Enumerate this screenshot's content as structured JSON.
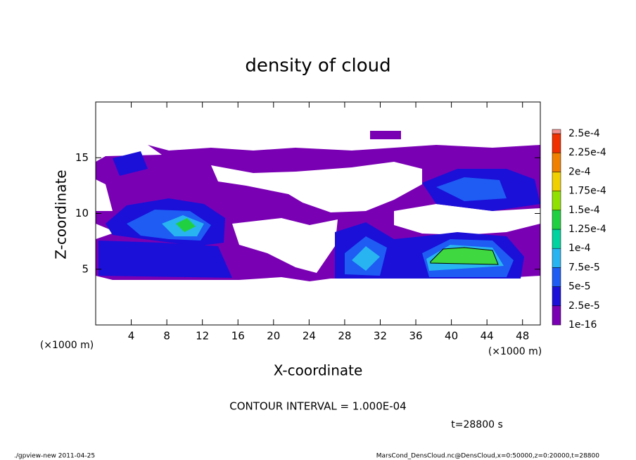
{
  "chart_data": {
    "type": "contour",
    "title": "density of cloud",
    "xlabel": "X-coordinate",
    "ylabel": "Z-coordinate",
    "xunit": "(×1000 m)",
    "yunit": "(×1000 m)",
    "xlim": [
      0,
      50
    ],
    "ylim": [
      0,
      20
    ],
    "xticks": [
      4,
      8,
      12,
      16,
      20,
      24,
      28,
      32,
      36,
      40,
      44,
      48
    ],
    "yticks": [
      5,
      10,
      15
    ],
    "colorbar": {
      "ticks": [
        {
          "value": 1e-16,
          "label": "1e-16"
        },
        {
          "value": 2.5e-05,
          "label": "2.5e-5"
        },
        {
          "value": 5e-05,
          "label": "5e-5"
        },
        {
          "value": 7.5e-05,
          "label": "7.5e-5"
        },
        {
          "value": 0.0001,
          "label": "1e-4"
        },
        {
          "value": 0.000125,
          "label": "1.25e-4"
        },
        {
          "value": 0.00015,
          "label": "1.5e-4"
        },
        {
          "value": 0.000175,
          "label": "1.75e-4"
        },
        {
          "value": 0.0002,
          "label": "2e-4"
        },
        {
          "value": 0.000225,
          "label": "2.25e-4"
        },
        {
          "value": 0.00025,
          "label": "2.5e-4"
        }
      ],
      "colors": [
        "#7a00b4",
        "#1a10d8",
        "#1e5cf4",
        "#28b4f0",
        "#00d2a0",
        "#20d040",
        "#90e000",
        "#f0d000",
        "#f08000",
        "#f03000",
        "#f59090"
      ]
    },
    "contour_interval": "CONTOUR INTERVAL = 1.000E-04",
    "time_label": "t=28800 s",
    "footer_left": "./gpview-new   2011-04-25",
    "footer_right": "MarsCond_DensCloud.nc@DensCloud,x=0:50000,z=0:20000,t=28800"
  }
}
